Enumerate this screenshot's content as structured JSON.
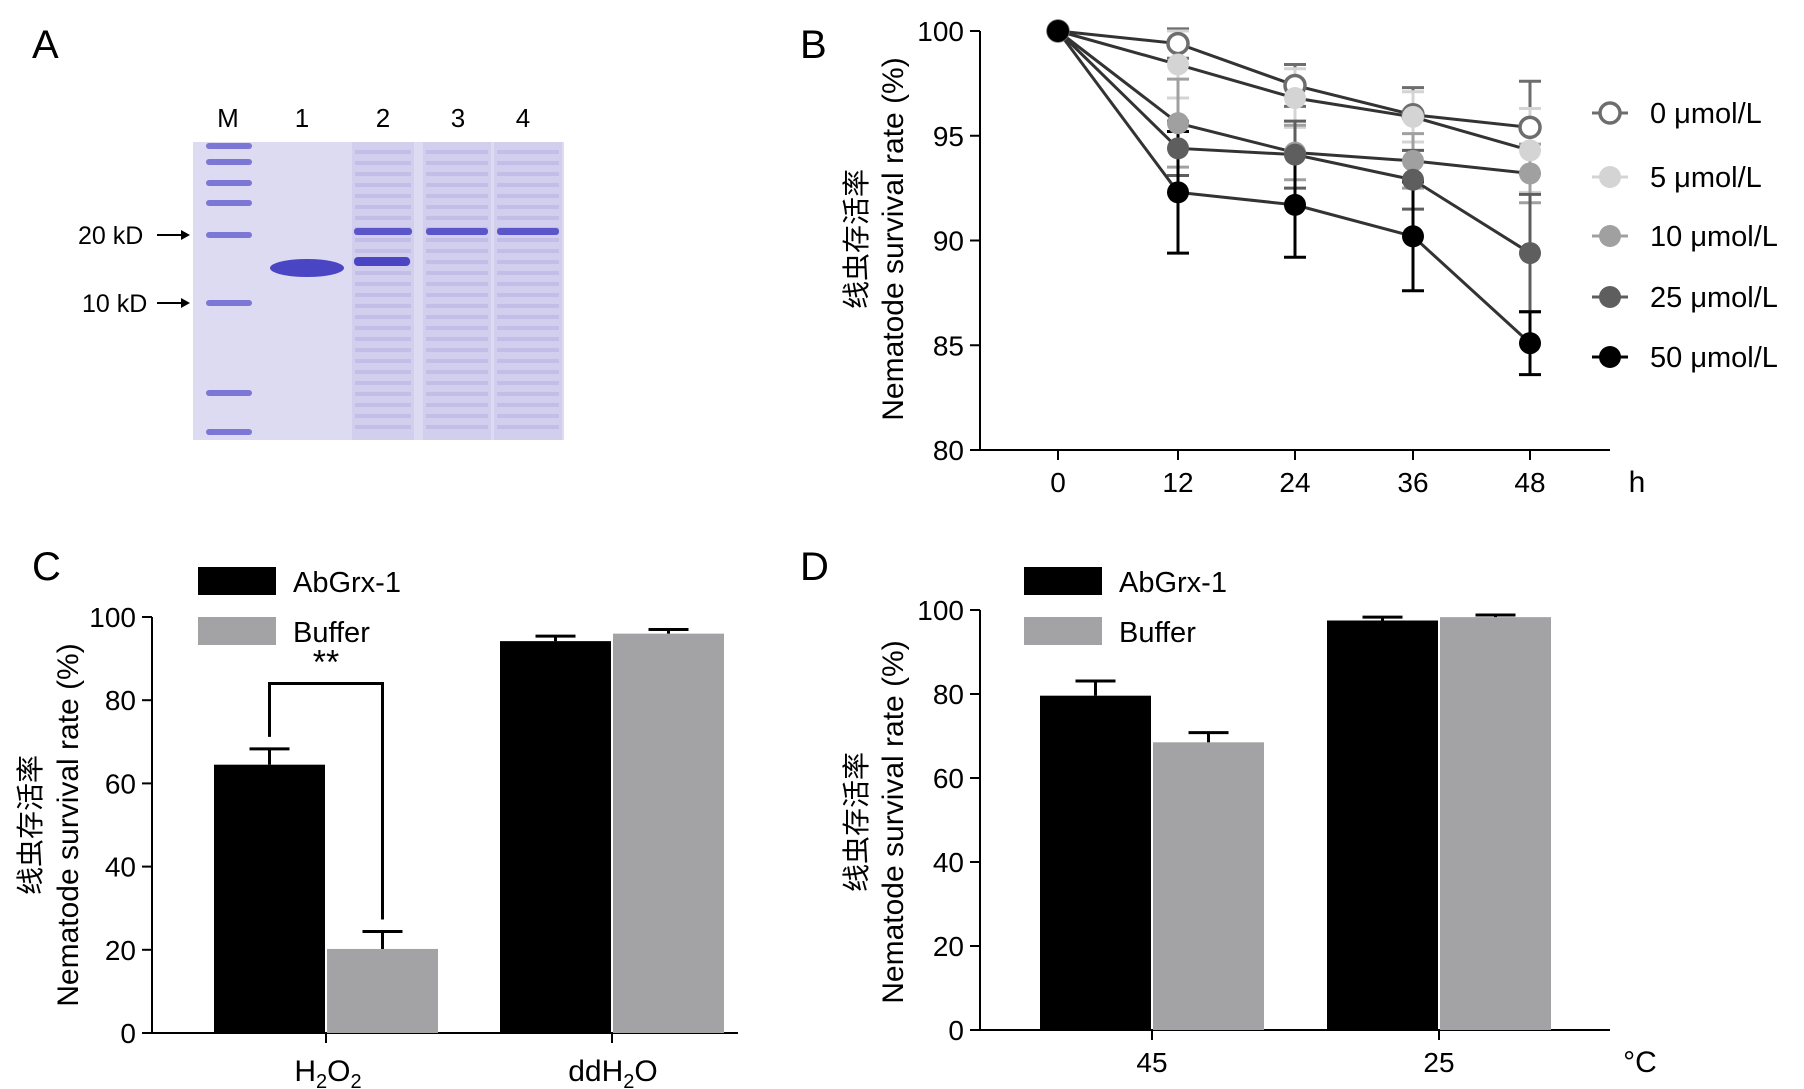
{
  "panels": {
    "a": {
      "letter": "A",
      "lane_labels": [
        "M",
        "1",
        "2",
        "3",
        "4"
      ],
      "marker_labels": [
        "20 kD",
        "10 kD"
      ]
    },
    "b": {
      "letter": "B"
    },
    "c": {
      "letter": "C"
    },
    "d": {
      "letter": "D"
    }
  },
  "colors": {
    "abgrx": "#000000",
    "buffer": "#a3a3a6",
    "s0": "#6d6d6d",
    "s5": "#d4d4d4",
    "s10": "#a0a0a0",
    "s25": "#5e5e5e",
    "s50": "#000000",
    "gel_bg": "#dcdbf1",
    "band": "#4a45c2"
  },
  "chart_data": [
    {
      "panel": "B",
      "type": "line",
      "ylabel_cn": "线虫存活率",
      "ylabel": "Nematode survival rate (%)",
      "xlabel": "h",
      "x": [
        0,
        12,
        24,
        36,
        48
      ],
      "xticks": [
        "0",
        "12",
        "24",
        "36",
        "48"
      ],
      "ylim": [
        80,
        100
      ],
      "yticks": [
        "80",
        "85",
        "90",
        "95",
        "100"
      ],
      "legend_position": "right",
      "series": [
        {
          "name": "0 μmol/L",
          "values": [
            100,
            99.4,
            97.4,
            96.0,
            95.4
          ],
          "errors": [
            0,
            0.7,
            1.0,
            1.3,
            2.2
          ],
          "open": true
        },
        {
          "name": "5 μmol/L",
          "values": [
            100,
            98.4,
            96.8,
            95.9,
            94.3
          ],
          "errors": [
            0,
            1.6,
            1.4,
            1.2,
            2.0
          ]
        },
        {
          "name": "10 μmol/L",
          "values": [
            100,
            95.6,
            94.2,
            93.8,
            93.2
          ],
          "errors": [
            0,
            2.1,
            1.3,
            1.3,
            1.4
          ]
        },
        {
          "name": "25 μmol/L",
          "values": [
            100,
            94.4,
            94.1,
            92.9,
            89.4
          ],
          "errors": [
            0,
            1.3,
            1.6,
            1.4,
            2.8
          ]
        },
        {
          "name": "50 μmol/L",
          "values": [
            100,
            92.3,
            91.7,
            90.2,
            85.1
          ],
          "errors": [
            0,
            2.9,
            2.5,
            2.6,
            1.5
          ]
        }
      ]
    },
    {
      "panel": "C",
      "type": "bar",
      "ylabel_cn": "线虫存活率",
      "ylabel": "Nematode survival rate (%)",
      "categories": [
        "H2O2",
        "ddH2O"
      ],
      "ylim": [
        0,
        100
      ],
      "yticks": [
        "0",
        "20",
        "40",
        "60",
        "80",
        "100"
      ],
      "significance": "**",
      "legend_position": "top-left",
      "series": [
        {
          "name": "AbGrx-1",
          "values": [
            64.5,
            94.2
          ],
          "errors": [
            3.8,
            1.2
          ]
        },
        {
          "name": "Buffer",
          "values": [
            20.2,
            96.0
          ],
          "errors": [
            4.2,
            1.0
          ]
        }
      ]
    },
    {
      "panel": "D",
      "type": "bar",
      "ylabel_cn": "线虫存活率",
      "ylabel": "Nematode survival rate (%)",
      "categories": [
        "45",
        "25"
      ],
      "xlabel": "°C",
      "ylim": [
        0,
        100
      ],
      "yticks": [
        "0",
        "20",
        "40",
        "60",
        "80",
        "100"
      ],
      "legend_position": "top-left",
      "series": [
        {
          "name": "AbGrx-1",
          "values": [
            79.6,
            97.5
          ],
          "errors": [
            3.5,
            0.8
          ]
        },
        {
          "name": "Buffer",
          "values": [
            68.5,
            98.3
          ],
          "errors": [
            2.3,
            0.5
          ]
        }
      ]
    }
  ]
}
